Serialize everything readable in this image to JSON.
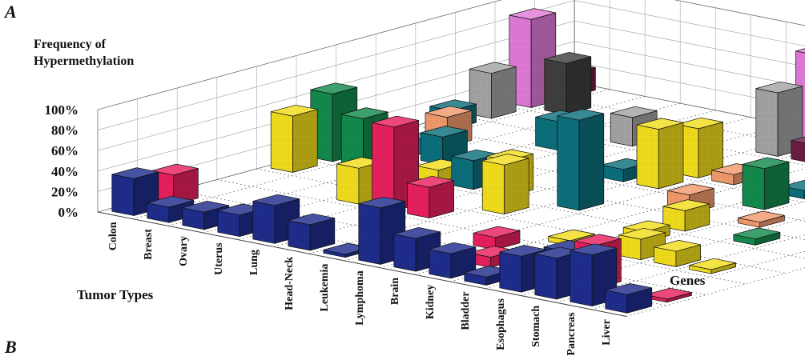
{
  "panel_labels": {
    "top": "A",
    "bottom": "B"
  },
  "colors": {
    "navy": "#1f2d8c",
    "magenta": "#e8205e",
    "yellow": "#f2dd1c",
    "green": "#138a4c",
    "teal": "#0c6f7c",
    "salmon": "#f09a6d",
    "lightblue": "#2aa0df",
    "grey": "#a3a3a3",
    "darkgrey": "#3f3f3f",
    "pink": "#e07ad8",
    "maroon": "#6c1c43",
    "lightgrey": "#c9c9c9"
  },
  "chart_data": {
    "type": "bar",
    "subtype": "3d-bar-grid",
    "ylabel": "Frequency of Hypermethylation",
    "xlabel": "Tumor Types",
    "zlabel": "Genes",
    "y_ticks": [
      "0%",
      "20%",
      "40%",
      "60%",
      "80%",
      "100%"
    ],
    "ylim": [
      0,
      100
    ],
    "categories": [
      "Colon",
      "Breast",
      "Ovary",
      "Uterus",
      "Lung",
      "Head-Neck",
      "Leukemia",
      "Lymphoma",
      "Brain",
      "Kidney",
      "Bladder",
      "Esophagus",
      "Stomach",
      "Pancreas",
      "Liver"
    ],
    "gene_count": 12,
    "bars": [
      {
        "tumor": 0,
        "gene": 0,
        "value": 36,
        "color": "navy"
      },
      {
        "tumor": 0,
        "gene": 1,
        "value": 29,
        "color": "magenta"
      },
      {
        "tumor": 0,
        "gene": 4,
        "value": 55,
        "color": "yellow"
      },
      {
        "tumor": 0,
        "gene": 5,
        "value": 66,
        "color": "green"
      },
      {
        "tumor": 0,
        "gene": 8,
        "value": 18,
        "color": "teal"
      },
      {
        "tumor": 0,
        "gene": 9,
        "value": 44,
        "color": "grey"
      },
      {
        "tumor": 0,
        "gene": 10,
        "value": 86,
        "color": "pink"
      },
      {
        "tumor": 0,
        "gene": 11,
        "value": 22,
        "color": "maroon"
      },
      {
        "tumor": 1,
        "gene": 0,
        "value": 15,
        "color": "navy"
      },
      {
        "tumor": 1,
        "gene": 6,
        "value": 15,
        "color": "lightblue"
      },
      {
        "tumor": 1,
        "gene": 7,
        "value": 29,
        "color": "salmon"
      },
      {
        "tumor": 1,
        "gene": 10,
        "value": 50,
        "color": "darkgrey"
      },
      {
        "tumor": 2,
        "gene": 0,
        "value": 17,
        "color": "navy"
      },
      {
        "tumor": 2,
        "gene": 4,
        "value": 66,
        "color": "green"
      },
      {
        "tumor": 2,
        "gene": 6,
        "value": 27,
        "color": "teal"
      },
      {
        "tumor": 3,
        "gene": 0,
        "value": 21,
        "color": "navy"
      },
      {
        "tumor": 3,
        "gene": 3,
        "value": 35,
        "color": "yellow"
      },
      {
        "tumor": 3,
        "gene": 5,
        "value": 12,
        "color": "yellow"
      },
      {
        "tumor": 3,
        "gene": 8,
        "value": 28,
        "color": "teal"
      },
      {
        "tumor": 4,
        "gene": 0,
        "value": 37,
        "color": "navy"
      },
      {
        "tumor": 4,
        "gene": 3,
        "value": 82,
        "color": "magenta"
      },
      {
        "tumor": 4,
        "gene": 5,
        "value": 28,
        "color": "teal"
      },
      {
        "tumor": 4,
        "gene": 9,
        "value": 28,
        "color": "grey"
      },
      {
        "tumor": 5,
        "gene": 0,
        "value": 25,
        "color": "navy"
      },
      {
        "tumor": 5,
        "gene": 3,
        "value": 30,
        "color": "magenta"
      },
      {
        "tumor": 5,
        "gene": 5,
        "value": 35,
        "color": "yellow"
      },
      {
        "tumor": 6,
        "gene": 0,
        "value": 3,
        "color": "navy"
      },
      {
        "tumor": 6,
        "gene": 1,
        "value": 3,
        "color": "magenta"
      },
      {
        "tumor": 6,
        "gene": 4,
        "value": 48,
        "color": "yellow"
      },
      {
        "tumor": 6,
        "gene": 7,
        "value": 12,
        "color": "teal"
      },
      {
        "tumor": 7,
        "gene": 0,
        "value": 55,
        "color": "navy"
      },
      {
        "tumor": 7,
        "gene": 5,
        "value": 88,
        "color": "teal"
      },
      {
        "tumor": 7,
        "gene": 7,
        "value": 58,
        "color": "yellow"
      },
      {
        "tumor": 7,
        "gene": 8,
        "value": 48,
        "color": "yellow"
      },
      {
        "tumor": 7,
        "gene": 10,
        "value": 62,
        "color": "grey"
      },
      {
        "tumor": 7,
        "gene": 11,
        "value": 88,
        "color": "pink"
      },
      {
        "tumor": 8,
        "gene": 0,
        "value": 32,
        "color": "navy"
      },
      {
        "tumor": 8,
        "gene": 2,
        "value": 12,
        "color": "magenta"
      },
      {
        "tumor": 8,
        "gene": 8,
        "value": 10,
        "color": "salmon"
      },
      {
        "tumor": 9,
        "gene": 0,
        "value": 24,
        "color": "navy"
      },
      {
        "tumor": 9,
        "gene": 1,
        "value": 10,
        "color": "magenta"
      },
      {
        "tumor": 9,
        "gene": 3,
        "value": 5,
        "color": "yellow"
      },
      {
        "tumor": 9,
        "gene": 6,
        "value": 18,
        "color": "salmon"
      },
      {
        "tumor": 10,
        "gene": 0,
        "value": 8,
        "color": "navy"
      },
      {
        "tumor": 10,
        "gene": 2,
        "value": 12,
        "color": "navy"
      },
      {
        "tumor": 10,
        "gene": 4,
        "value": 10,
        "color": "yellow"
      },
      {
        "tumor": 10,
        "gene": 5,
        "value": 20,
        "color": "yellow"
      },
      {
        "tumor": 10,
        "gene": 7,
        "value": 40,
        "color": "green"
      },
      {
        "tumor": 10,
        "gene": 8,
        "value": 8,
        "color": "teal"
      },
      {
        "tumor": 11,
        "gene": 0,
        "value": 35,
        "color": "navy"
      },
      {
        "tumor": 11,
        "gene": 1,
        "value": 6,
        "color": "magenta"
      },
      {
        "tumor": 11,
        "gene": 3,
        "value": 20,
        "color": "yellow"
      },
      {
        "tumor": 11,
        "gene": 6,
        "value": 5,
        "color": "salmon"
      },
      {
        "tumor": 11,
        "gene": 9,
        "value": 88,
        "color": "salmon"
      },
      {
        "tumor": 12,
        "gene": 0,
        "value": 40,
        "color": "navy"
      },
      {
        "tumor": 12,
        "gene": 1,
        "value": 42,
        "color": "magenta"
      },
      {
        "tumor": 12,
        "gene": 3,
        "value": 15,
        "color": "yellow"
      },
      {
        "tumor": 12,
        "gene": 5,
        "value": 6,
        "color": "green"
      },
      {
        "tumor": 12,
        "gene": 7,
        "value": 3,
        "color": "lightblue"
      },
      {
        "tumor": 12,
        "gene": 9,
        "value": 3,
        "color": "teal"
      },
      {
        "tumor": 12,
        "gene": 11,
        "value": 6,
        "color": "lightgrey"
      },
      {
        "tumor": 13,
        "gene": 0,
        "value": 50,
        "color": "navy"
      },
      {
        "tumor": 13,
        "gene": 3,
        "value": 4,
        "color": "yellow"
      },
      {
        "tumor": 14,
        "gene": 0,
        "value": 18,
        "color": "navy"
      },
      {
        "tumor": 14,
        "gene": 1,
        "value": 3,
        "color": "magenta"
      },
      {
        "tumor": 10,
        "gene": 10,
        "value": 30,
        "color": "maroon"
      },
      {
        "tumor": 11,
        "gene": 10,
        "value": 35,
        "color": "maroon"
      },
      {
        "tumor": 12,
        "gene": 10,
        "value": 32,
        "color": "maroon"
      },
      {
        "tumor": 9,
        "gene": 10,
        "value": 20,
        "color": "maroon"
      },
      {
        "tumor": 8,
        "gene": 10,
        "value": 18,
        "color": "maroon"
      }
    ]
  }
}
